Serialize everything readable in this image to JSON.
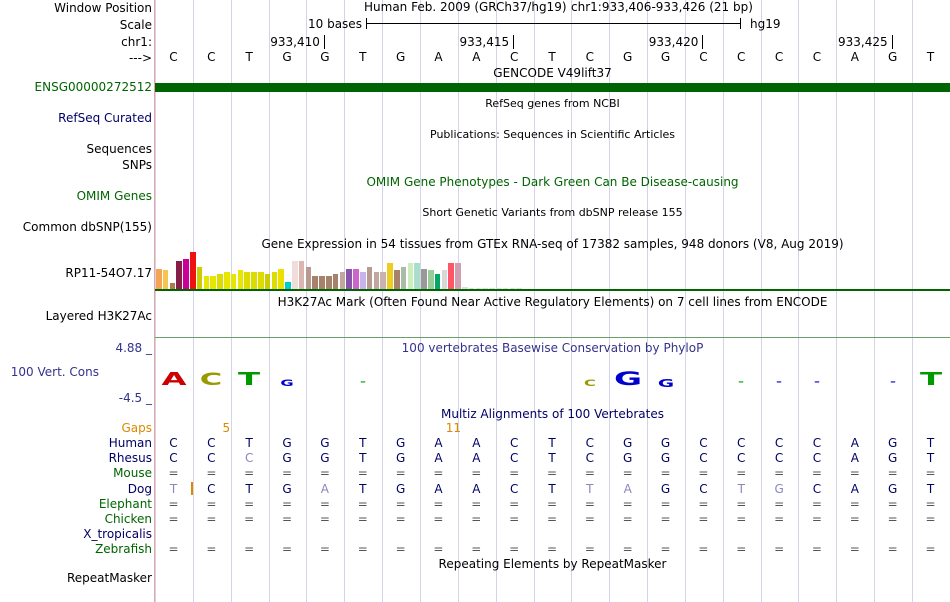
{
  "ruler": {
    "window_position_label": "Window Position",
    "scale_label": "Scale",
    "chr_label": "chr1:",
    "arrow_label": "--->",
    "assembly_text": "Human Feb. 2009 (GRCh37/hg19)",
    "position_text": "chr1:933,406-933,426 (21 bp)",
    "scale_text": "10 bases",
    "scale_db": "hg19",
    "coordinates": [
      "933,410",
      "933,415",
      "933,420",
      "933,425"
    ]
  },
  "bases": [
    "C",
    "C",
    "T",
    "G",
    "G",
    "T",
    "G",
    "A",
    "A",
    "C",
    "T",
    "C",
    "G",
    "G",
    "C",
    "C",
    "C",
    "C",
    "A",
    "G",
    "T"
  ],
  "tracks": {
    "gencode": {
      "title": "GENCODE V49lift37",
      "label": "ENSG00000272512",
      "color": "#006400"
    },
    "refseq": {
      "title": "RefSeq genes from NCBI",
      "label": "RefSeq Curated"
    },
    "publications": {
      "title": "Publications: Sequences in Scientific Articles",
      "label": "Sequences"
    },
    "snps_label": "SNPs",
    "omim": {
      "title": "OMIM Gene Phenotypes - Dark Green Can Be Disease-causing",
      "label": "OMIM Genes",
      "color": "#006400"
    },
    "dbsnp": {
      "title": "Short Genetic Variants from dbSNP release 155",
      "label": "Common dbSNP(155)"
    },
    "gtex": {
      "title": "Gene Expression in 54 tissues from GTEx RNA-seq of 17382 samples, 948 donors (V8, Aug 2019)",
      "label": "RP11-54O7.17",
      "values": [
        0.55,
        0.5,
        0.15,
        0.75,
        0.8,
        1.0,
        0.6,
        0.35,
        0.35,
        0.4,
        0.45,
        0.4,
        0.5,
        0.45,
        0.45,
        0.45,
        0.4,
        0.45,
        0.55,
        0.2,
        0.75,
        0.75,
        0.6,
        0.35,
        0.35,
        0.35,
        0.4,
        0.45,
        0.55,
        0.55,
        0.45,
        0.6,
        0.45,
        0.45,
        0.7,
        0.5,
        0.6,
        0.7,
        0.7,
        0.55,
        0.5,
        0.4,
        0.5,
        0.7,
        0.7,
        0.05,
        0.03,
        0.03,
        0.03,
        0.03,
        0.03,
        0.03,
        0.03,
        0.03
      ],
      "colors": [
        "#f5a454",
        "#f5c54d",
        "#ad7a4e",
        "#851f48",
        "#cc0099",
        "#ee1111",
        "#cccc00",
        "#e6e600",
        "#e6e600",
        "#dcdc00",
        "#e6e600",
        "#e6e600",
        "#e6e600",
        "#dcdc00",
        "#dcdc00",
        "#dcdc00",
        "#cccc00",
        "#dcdc00",
        "#ece000",
        "#00cccc",
        "#f0dcd8",
        "#dbb6b0",
        "#b79a90",
        "#a6826b",
        "#a6826b",
        "#a6826b",
        "#a6826b",
        "#c0a8a0",
        "#8855aa",
        "#cc66cc",
        "#c9b4ea",
        "#b79a90",
        "#c0a8a0",
        "#c8b2b2",
        "#eecc22",
        "#a6826b",
        "#aabbaa",
        "#cceebb",
        "#aaddcc",
        "#999999",
        "#99cc99",
        "#00aa66",
        "#d8d8d8",
        "#ff5566",
        "#d0a0b0",
        "#dddddd",
        "#dddddd",
        "#dddddd",
        "#dddddd",
        "#dddddd",
        "#dddddd",
        "#dddddd",
        "#dddddd",
        "#dddddd"
      ]
    },
    "h3k27ac": {
      "title": "H3K27Ac Mark (Often Found Near Active Regulatory Elements) on 7 cell lines from ENCODE",
      "label": "Layered H3K27Ac"
    },
    "conservation": {
      "title": "100 vertebrates Basewise Conservation by PhyloP",
      "label": "100 Vert. Cons",
      "max_label": "4.88 _",
      "min_label": "-4.5 _",
      "color": "#33338c",
      "logo": [
        {
          "letter": "A",
          "color": "#cc0000",
          "size": 1.6,
          "flip": false
        },
        {
          "letter": "C",
          "color": "#999900",
          "size": 1.4,
          "flip": false
        },
        {
          "letter": "T",
          "color": "#009900",
          "size": 1.6,
          "flip": false
        },
        {
          "letter": "G",
          "color": "#0000cc",
          "size": 0.6,
          "flip": false
        },
        {
          "letter": "",
          "color": "#000",
          "size": 0,
          "flip": false
        },
        {
          "letter": "-",
          "color": "#009900",
          "size": 0.2,
          "flip": false
        },
        {
          "letter": "",
          "color": "#000",
          "size": 0,
          "flip": false
        },
        {
          "letter": "",
          "color": "#000",
          "size": 0,
          "flip": false
        },
        {
          "letter": "",
          "color": "#000",
          "size": 0,
          "flip": false
        },
        {
          "letter": "",
          "color": "#000",
          "size": 0,
          "flip": false
        },
        {
          "letter": "",
          "color": "#000",
          "size": 0,
          "flip": false
        },
        {
          "letter": "C",
          "color": "#999900",
          "size": 0.5,
          "flip": false
        },
        {
          "letter": "G",
          "color": "#0000cc",
          "size": 1.7,
          "flip": false
        },
        {
          "letter": "G",
          "color": "#0000cc",
          "size": 0.8,
          "flip": false
        },
        {
          "letter": "",
          "color": "#000",
          "size": 0,
          "flip": false
        },
        {
          "letter": "-",
          "color": "#009900",
          "size": 0.3,
          "flip": false
        },
        {
          "letter": "-",
          "color": "#0000cc",
          "size": 0.2,
          "flip": false
        },
        {
          "letter": "-",
          "color": "#0000cc",
          "size": 0.2,
          "flip": false
        },
        {
          "letter": "",
          "color": "#000",
          "size": 0,
          "flip": false
        },
        {
          "letter": "-",
          "color": "#0000cc",
          "size": 0.2,
          "flip": false
        },
        {
          "letter": "T",
          "color": "#009900",
          "size": 1.6,
          "flip": false
        }
      ]
    },
    "multiz": {
      "title": "Multiz Alignments of 100 Vertebrates",
      "gaps_label": "Gaps",
      "gap_numbers": [
        {
          "text": "5",
          "col": 1
        },
        {
          "text": "11",
          "col": 7
        }
      ],
      "species": [
        {
          "name": "Human",
          "row": [
            "C",
            "C",
            "T",
            "G",
            "G",
            "T",
            "G",
            "A",
            "A",
            "C",
            "T",
            "C",
            "G",
            "G",
            "C",
            "C",
            "C",
            "C",
            "A",
            "G",
            "T"
          ]
        },
        {
          "name": "Rhesus",
          "row": [
            "C",
            "C",
            "C",
            "G",
            "G",
            "T",
            "G",
            "A",
            "A",
            "C",
            "T",
            "C",
            "G",
            "G",
            "C",
            "C",
            "C",
            "C",
            "A",
            "G",
            "T"
          ]
        },
        {
          "name": "Mouse",
          "row": [
            "=",
            "=",
            "=",
            "=",
            "=",
            "=",
            "=",
            "=",
            "=",
            "=",
            "=",
            "=",
            "=",
            "=",
            "=",
            "=",
            "=",
            "=",
            "=",
            "=",
            "="
          ]
        },
        {
          "name": "Dog",
          "row": [
            "T",
            "C",
            "T",
            "G",
            "A",
            "T",
            "G",
            "A",
            "A",
            "C",
            "T",
            "T",
            "A",
            "G",
            "C",
            "T",
            "G",
            "C",
            "A",
            "G",
            "T"
          ]
        },
        {
          "name": "Elephant",
          "row": [
            "=",
            "=",
            "=",
            "=",
            "=",
            "=",
            "=",
            "=",
            "=",
            "=",
            "=",
            "=",
            "=",
            "=",
            "=",
            "=",
            "=",
            "=",
            "=",
            "=",
            "="
          ]
        },
        {
          "name": "Chicken",
          "row": [
            "=",
            "=",
            "=",
            "=",
            "=",
            "=",
            "=",
            "=",
            "=",
            "=",
            "=",
            "=",
            "=",
            "=",
            "=",
            "=",
            "=",
            "=",
            "=",
            "=",
            "="
          ]
        },
        {
          "name": "X_tropicalis",
          "row": [
            "",
            "",
            "",
            "",
            "",
            "",
            "",
            "",
            "",
            "",
            "",
            "",
            "",
            "",
            "",
            "",
            "",
            "",
            "",
            "",
            ""
          ]
        },
        {
          "name": "Zebrafish",
          "row": [
            "=",
            "=",
            "=",
            "=",
            "=",
            "=",
            "=",
            "=",
            "=",
            "=",
            "=",
            "=",
            "=",
            "=",
            "=",
            "=",
            "=",
            "=",
            "=",
            "=",
            "="
          ]
        }
      ],
      "diff_marks": [
        {
          "species": 1,
          "col": 2
        },
        {
          "species": 3,
          "col": 0
        },
        {
          "species": 3,
          "col": 4
        },
        {
          "species": 3,
          "col": 11
        },
        {
          "species": 3,
          "col": 12
        },
        {
          "species": 3,
          "col": 15
        },
        {
          "species": 3,
          "col": 16
        }
      ]
    },
    "repeatmasker": {
      "title": "Repeating Elements by RepeatMasker",
      "label": "RepeatMasker"
    }
  },
  "colors": {
    "label_navy": "#000066",
    "label_green": "#006400",
    "label_navy2": "#000099",
    "gaps_orange": "#dd8800",
    "gridline": "#d4d4e8",
    "divider": "#e7a2a2"
  }
}
